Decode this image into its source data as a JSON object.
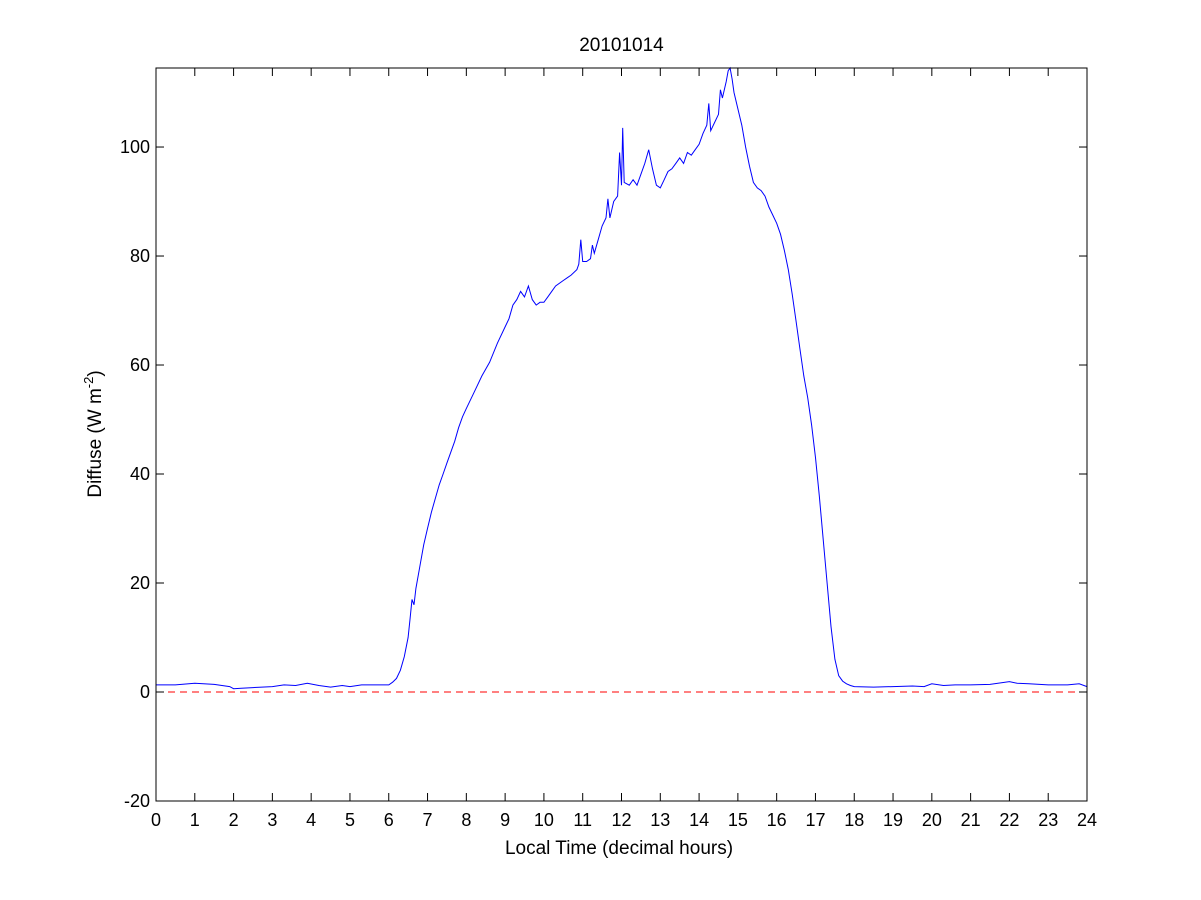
{
  "chart_data": {
    "type": "line",
    "title": "20101014",
    "xlabel": "Local Time (decimal hours)",
    "ylabel": {
      "main": "Diffuse (W m",
      "superscript": "-2",
      "close": ")"
    },
    "xlim": [
      0,
      24
    ],
    "ylim": [
      -20,
      114.5
    ],
    "xticks": [
      0,
      1,
      2,
      3,
      4,
      5,
      6,
      7,
      8,
      9,
      10,
      11,
      12,
      13,
      14,
      15,
      16,
      17,
      18,
      19,
      20,
      21,
      22,
      23,
      24
    ],
    "yticks": [
      -20,
      0,
      20,
      40,
      60,
      80,
      100
    ],
    "grid": false,
    "series": [
      {
        "color": "#0000ff",
        "style": "solid",
        "points": [
          [
            0.0,
            1.3
          ],
          [
            0.5,
            1.3
          ],
          [
            1.0,
            1.6
          ],
          [
            1.5,
            1.4
          ],
          [
            1.9,
            1.0
          ],
          [
            2.0,
            0.6
          ],
          [
            2.2,
            0.7
          ],
          [
            2.5,
            0.8
          ],
          [
            3.0,
            1.0
          ],
          [
            3.3,
            1.3
          ],
          [
            3.6,
            1.2
          ],
          [
            3.9,
            1.6
          ],
          [
            4.2,
            1.2
          ],
          [
            4.5,
            0.9
          ],
          [
            4.8,
            1.2
          ],
          [
            5.0,
            1.0
          ],
          [
            5.3,
            1.3
          ],
          [
            5.7,
            1.3
          ],
          [
            6.0,
            1.3
          ],
          [
            6.1,
            1.8
          ],
          [
            6.2,
            2.5
          ],
          [
            6.3,
            4.0
          ],
          [
            6.4,
            6.5
          ],
          [
            6.5,
            10.0
          ],
          [
            6.55,
            13.5
          ],
          [
            6.6,
            17.0
          ],
          [
            6.65,
            16.0
          ],
          [
            6.7,
            19.0
          ],
          [
            6.8,
            23.0
          ],
          [
            6.9,
            27.0
          ],
          [
            7.0,
            30.0
          ],
          [
            7.1,
            33.0
          ],
          [
            7.2,
            35.5
          ],
          [
            7.3,
            38.0
          ],
          [
            7.4,
            40.0
          ],
          [
            7.5,
            42.0
          ],
          [
            7.6,
            44.0
          ],
          [
            7.7,
            46.0
          ],
          [
            7.8,
            48.5
          ],
          [
            7.9,
            50.5
          ],
          [
            8.0,
            52.0
          ],
          [
            8.2,
            55.0
          ],
          [
            8.4,
            58.0
          ],
          [
            8.6,
            60.5
          ],
          [
            8.8,
            64.0
          ],
          [
            9.0,
            67.0
          ],
          [
            9.1,
            68.5
          ],
          [
            9.2,
            71.0
          ],
          [
            9.3,
            72.0
          ],
          [
            9.4,
            73.5
          ],
          [
            9.5,
            72.5
          ],
          [
            9.6,
            74.5
          ],
          [
            9.7,
            72.0
          ],
          [
            9.8,
            71.0
          ],
          [
            9.9,
            71.5
          ],
          [
            10.0,
            71.5
          ],
          [
            10.1,
            72.5
          ],
          [
            10.2,
            73.5
          ],
          [
            10.3,
            74.5
          ],
          [
            10.5,
            75.5
          ],
          [
            10.6,
            76.0
          ],
          [
            10.7,
            76.5
          ],
          [
            10.85,
            77.5
          ],
          [
            10.9,
            78.5
          ],
          [
            10.95,
            83.0
          ],
          [
            11.0,
            79.0
          ],
          [
            11.1,
            79.0
          ],
          [
            11.2,
            79.5
          ],
          [
            11.25,
            82.0
          ],
          [
            11.3,
            80.5
          ],
          [
            11.4,
            83.0
          ],
          [
            11.5,
            85.5
          ],
          [
            11.6,
            87.0
          ],
          [
            11.65,
            90.5
          ],
          [
            11.7,
            87.0
          ],
          [
            11.8,
            90.0
          ],
          [
            11.9,
            91.0
          ],
          [
            11.95,
            99.0
          ],
          [
            12.0,
            93.0
          ],
          [
            12.03,
            103.5
          ],
          [
            12.07,
            93.5
          ],
          [
            12.2,
            93.0
          ],
          [
            12.3,
            94.0
          ],
          [
            12.4,
            93.0
          ],
          [
            12.5,
            95.0
          ],
          [
            12.6,
            97.0
          ],
          [
            12.7,
            99.5
          ],
          [
            12.8,
            96.0
          ],
          [
            12.9,
            93.0
          ],
          [
            13.0,
            92.5
          ],
          [
            13.1,
            94.0
          ],
          [
            13.2,
            95.5
          ],
          [
            13.3,
            96.0
          ],
          [
            13.4,
            97.0
          ],
          [
            13.5,
            98.0
          ],
          [
            13.6,
            97.0
          ],
          [
            13.7,
            99.0
          ],
          [
            13.8,
            98.5
          ],
          [
            13.9,
            99.5
          ],
          [
            14.0,
            100.5
          ],
          [
            14.1,
            102.5
          ],
          [
            14.2,
            104.0
          ],
          [
            14.25,
            108.0
          ],
          [
            14.3,
            103.0
          ],
          [
            14.4,
            104.5
          ],
          [
            14.5,
            106.0
          ],
          [
            14.55,
            110.5
          ],
          [
            14.6,
            109.0
          ],
          [
            14.7,
            112.0
          ],
          [
            14.75,
            114.0
          ],
          [
            14.8,
            114.5
          ],
          [
            14.85,
            112.5
          ],
          [
            14.9,
            110.0
          ],
          [
            15.0,
            107.0
          ],
          [
            15.1,
            104.0
          ],
          [
            15.2,
            100.0
          ],
          [
            15.3,
            96.5
          ],
          [
            15.4,
            93.5
          ],
          [
            15.5,
            92.5
          ],
          [
            15.6,
            92.0
          ],
          [
            15.7,
            91.0
          ],
          [
            15.8,
            89.0
          ],
          [
            15.9,
            87.5
          ],
          [
            16.0,
            86.0
          ],
          [
            16.1,
            84.0
          ],
          [
            16.2,
            81.0
          ],
          [
            16.3,
            77.5
          ],
          [
            16.4,
            73.0
          ],
          [
            16.5,
            68.0
          ],
          [
            16.6,
            63.0
          ],
          [
            16.7,
            58.0
          ],
          [
            16.8,
            54.0
          ],
          [
            16.9,
            49.0
          ],
          [
            17.0,
            43.0
          ],
          [
            17.1,
            36.0
          ],
          [
            17.2,
            28.0
          ],
          [
            17.3,
            20.0
          ],
          [
            17.4,
            12.0
          ],
          [
            17.5,
            6.0
          ],
          [
            17.6,
            3.0
          ],
          [
            17.7,
            2.0
          ],
          [
            17.8,
            1.5
          ],
          [
            17.9,
            1.2
          ],
          [
            18.0,
            1.0
          ],
          [
            18.5,
            0.9
          ],
          [
            19.0,
            1.0
          ],
          [
            19.5,
            1.1
          ],
          [
            19.8,
            1.0
          ],
          [
            20.0,
            1.5
          ],
          [
            20.3,
            1.2
          ],
          [
            20.6,
            1.3
          ],
          [
            21.0,
            1.3
          ],
          [
            21.5,
            1.4
          ],
          [
            22.0,
            1.9
          ],
          [
            22.2,
            1.6
          ],
          [
            22.5,
            1.5
          ],
          [
            23.0,
            1.3
          ],
          [
            23.5,
            1.3
          ],
          [
            23.8,
            1.5
          ],
          [
            24.0,
            1.0
          ]
        ]
      },
      {
        "color": "#ff0000",
        "style": "dashed",
        "points": [
          [
            0,
            0
          ],
          [
            24,
            0
          ]
        ]
      }
    ]
  }
}
